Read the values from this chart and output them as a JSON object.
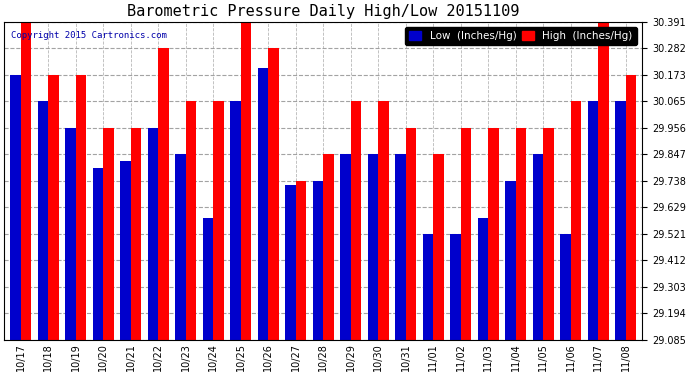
{
  "title": "Barometric Pressure Daily High/Low 20151109",
  "copyright": "Copyright 2015 Cartronics.com",
  "legend_low": "Low  (Inches/Hg)",
  "legend_high": "High  (Inches/Hg)",
  "low_color": "#0000CC",
  "high_color": "#FF0000",
  "background_color": "#FFFFFF",
  "plot_bg_color": "#FFFFFF",
  "ylim_min": 29.085,
  "ylim_max": 30.391,
  "yticks": [
    29.085,
    29.194,
    29.303,
    29.412,
    29.521,
    29.629,
    29.738,
    29.847,
    29.956,
    30.065,
    30.173,
    30.282,
    30.391
  ],
  "dates": [
    "10/17",
    "10/18",
    "10/19",
    "10/20",
    "10/21",
    "10/22",
    "10/23",
    "10/24",
    "10/25",
    "10/26",
    "10/27",
    "10/28",
    "10/29",
    "10/30",
    "10/31",
    "11/01",
    "11/02",
    "11/03",
    "11/04",
    "11/05",
    "11/06",
    "11/07",
    "11/08"
  ],
  "low_values": [
    30.173,
    30.065,
    29.956,
    29.791,
    29.82,
    29.956,
    29.847,
    29.586,
    30.065,
    30.2,
    29.72,
    29.738,
    29.847,
    29.847,
    29.847,
    29.521,
    29.521,
    29.586,
    29.738,
    29.847,
    29.521,
    30.065,
    30.065
  ],
  "high_values": [
    30.391,
    30.173,
    30.173,
    29.956,
    29.956,
    30.282,
    30.065,
    30.065,
    30.391,
    30.282,
    29.738,
    29.847,
    30.065,
    30.065,
    29.956,
    29.847,
    29.956,
    29.956,
    29.956,
    29.956,
    30.065,
    30.391,
    30.173
  ],
  "grid_color": "#999999",
  "bar_width": 0.38,
  "title_fontsize": 11,
  "tick_fontsize": 7,
  "legend_fontsize": 7.5,
  "copyright_fontsize": 6.5
}
